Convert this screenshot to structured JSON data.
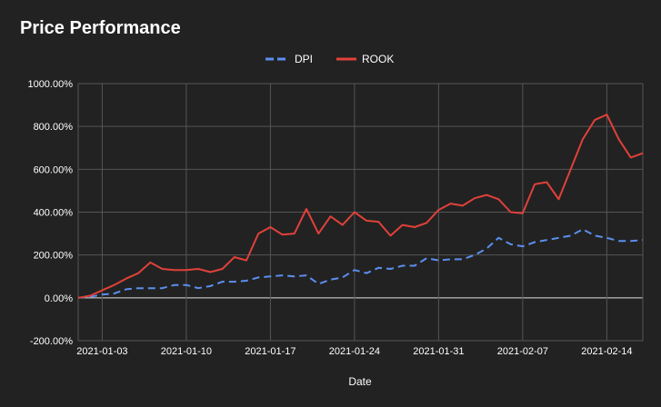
{
  "colors": {
    "background": "#222222",
    "grid": "#555555",
    "zero_line": "#e0e0e0",
    "text": "#ffffff"
  },
  "chart_data": {
    "type": "line",
    "title": "Price Performance",
    "xlabel": "Date",
    "ylabel": "",
    "y_tick_labels": [
      "-200.00%",
      "0.00%",
      "200.00%",
      "400.00%",
      "600.00%",
      "800.00%",
      "1000.00%"
    ],
    "ylim": [
      -200,
      1000
    ],
    "x_tick_labels": [
      "2021-01-03",
      "2021-01-10",
      "2021-01-17",
      "2021-01-24",
      "2021-01-31",
      "2021-02-07",
      "2021-02-14"
    ],
    "xlim": [
      "2021-01-01",
      "2021-02-17"
    ],
    "legend_position": "top-center",
    "x": [
      "2021-01-01",
      "2021-01-02",
      "2021-01-03",
      "2021-01-04",
      "2021-01-05",
      "2021-01-06",
      "2021-01-07",
      "2021-01-08",
      "2021-01-09",
      "2021-01-10",
      "2021-01-11",
      "2021-01-12",
      "2021-01-13",
      "2021-01-14",
      "2021-01-15",
      "2021-01-16",
      "2021-01-17",
      "2021-01-18",
      "2021-01-19",
      "2021-01-20",
      "2021-01-21",
      "2021-01-22",
      "2021-01-23",
      "2021-01-24",
      "2021-01-25",
      "2021-01-26",
      "2021-01-27",
      "2021-01-28",
      "2021-01-29",
      "2021-01-30",
      "2021-01-31",
      "2021-02-01",
      "2021-02-02",
      "2021-02-03",
      "2021-02-04",
      "2021-02-05",
      "2021-02-06",
      "2021-02-07",
      "2021-02-08",
      "2021-02-09",
      "2021-02-10",
      "2021-02-11",
      "2021-02-12",
      "2021-02-13",
      "2021-02-14",
      "2021-02-15",
      "2021-02-16",
      "2021-02-17"
    ],
    "series": [
      {
        "name": "DPI",
        "color": "#5b8ff0",
        "style": "dashed",
        "values": [
          0,
          5,
          15,
          20,
          40,
          45,
          45,
          45,
          60,
          60,
          45,
          55,
          75,
          75,
          80,
          95,
          100,
          105,
          100,
          105,
          65,
          85,
          95,
          130,
          115,
          140,
          135,
          150,
          150,
          185,
          175,
          180,
          180,
          200,
          230,
          280,
          250,
          240,
          260,
          270,
          280,
          290,
          320,
          290,
          280,
          265,
          265,
          270
        ]
      },
      {
        "name": "ROOK",
        "color": "#e0413a",
        "style": "solid",
        "values": [
          0,
          10,
          35,
          60,
          90,
          115,
          165,
          135,
          130,
          130,
          135,
          120,
          135,
          190,
          175,
          300,
          330,
          295,
          300,
          415,
          300,
          380,
          340,
          400,
          360,
          355,
          290,
          340,
          330,
          350,
          410,
          440,
          430,
          465,
          480,
          460,
          400,
          395,
          530,
          540,
          460,
          600,
          740,
          830,
          855,
          740,
          655,
          675
        ]
      }
    ]
  }
}
